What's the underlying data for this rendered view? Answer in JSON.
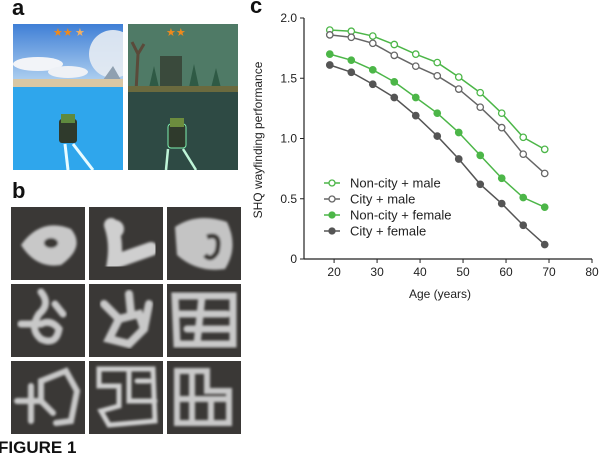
{
  "figure_label": "FIGURE 1",
  "panels": {
    "a": "a",
    "b": "b",
    "c": "c"
  },
  "panel_a": {
    "screens": [
      {
        "theme": "ocean",
        "stars_filled": 2.5,
        "stars_total": 3,
        "sky": "#5aa2e6",
        "water": "#2fa6ec"
      },
      {
        "theme": "swamp",
        "stars_filled": 2,
        "stars_total": 3,
        "sky": "#4f7a66",
        "water": "#2e4a44"
      }
    ]
  },
  "panel_b": {
    "maze_count": 9
  },
  "chart_data": {
    "type": "line",
    "xlabel": "Age (years)",
    "ylabel": "SHQ wayfinding performance",
    "xlim": [
      13,
      80
    ],
    "ylim": [
      0,
      2.0
    ],
    "xticks": [
      20,
      30,
      40,
      50,
      60,
      70,
      80
    ],
    "yticks": [
      "0",
      "0.5",
      "1.0",
      "1.5",
      "2.0"
    ],
    "ytick_values": [
      0,
      0.5,
      1.0,
      1.5,
      2.0
    ],
    "grid": false,
    "legend_position": "bottom-left",
    "x": [
      19,
      24,
      29,
      34,
      39,
      44,
      49,
      54,
      59,
      64,
      69
    ],
    "series": [
      {
        "name": "Non-city + male",
        "color": "#4cb648",
        "marker": "open",
        "values": [
          1.9,
          1.89,
          1.85,
          1.78,
          1.7,
          1.63,
          1.51,
          1.38,
          1.21,
          1.01,
          0.91
        ]
      },
      {
        "name": "City + male",
        "color": "#666666",
        "marker": "open",
        "values": [
          1.86,
          1.84,
          1.79,
          1.69,
          1.6,
          1.52,
          1.41,
          1.26,
          1.09,
          0.87,
          0.71
        ]
      },
      {
        "name": "Non-city + female",
        "color": "#4cb648",
        "marker": "filled",
        "values": [
          1.7,
          1.65,
          1.57,
          1.47,
          1.34,
          1.21,
          1.05,
          0.86,
          0.67,
          0.51,
          0.43
        ]
      },
      {
        "name": "City + female",
        "color": "#555555",
        "marker": "filled",
        "values": [
          1.61,
          1.55,
          1.45,
          1.34,
          1.19,
          1.02,
          0.83,
          0.62,
          0.46,
          0.28,
          0.12
        ]
      }
    ]
  }
}
